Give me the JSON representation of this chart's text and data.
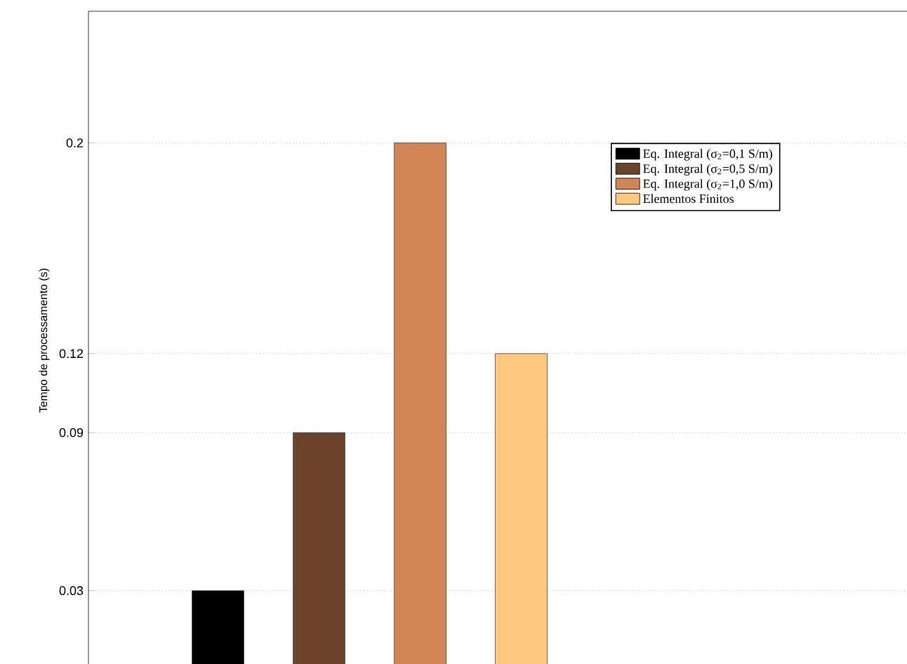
{
  "chart_data": {
    "type": "bar",
    "ylabel": "Tempo de processamento (s)",
    "categories": [
      null
    ],
    "series": [
      {
        "name": "Eq. Integral (σ$_{2}$=0,1 S/m)",
        "color": "#000000",
        "values": [
          0.03
        ]
      },
      {
        "name": "Eq. Integral (σ$_{2}$=0,5 S/m)",
        "color": "#6b432b",
        "values": [
          0.09
        ]
      },
      {
        "name": "Eq. Integral (σ$_{2}$=1,0 S/m)",
        "color": "#d28556",
        "values": [
          0.2
        ]
      },
      {
        "name": "Elementos Finitos",
        "color": "#ffc880",
        "values": [
          0.12
        ]
      }
    ],
    "ylim": [
      0,
      0.25
    ],
    "yticks": [
      0.03,
      0.09,
      0.12,
      0.2
    ],
    "grid": "y",
    "legend": "right",
    "tick_labels": "y"
  }
}
